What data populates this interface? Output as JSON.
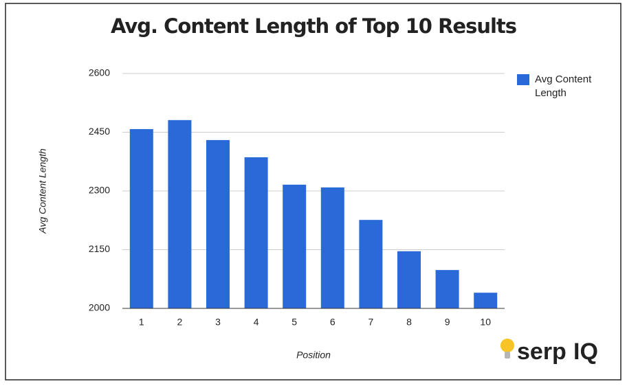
{
  "chart_data": {
    "type": "bar",
    "title": "Avg. Content Length of Top 10 Results",
    "x_label": "Position",
    "y_label": "Avg Content Length",
    "categories": [
      "1",
      "2",
      "3",
      "4",
      "5",
      "6",
      "7",
      "8",
      "9",
      "10"
    ],
    "series": [
      {
        "name": "Avg Content Length",
        "color": "#2a6ad8",
        "values": [
          2458,
          2481,
          2430,
          2386,
          2316,
          2309,
          2226,
          2146,
          2098,
          2040
        ]
      }
    ],
    "ylim": [
      2000,
      2600
    ],
    "yticks": [
      2000,
      2150,
      2300,
      2450,
      2600
    ],
    "grid": true,
    "legend": "right"
  },
  "logo": [
    "serp",
    "IQ"
  ]
}
